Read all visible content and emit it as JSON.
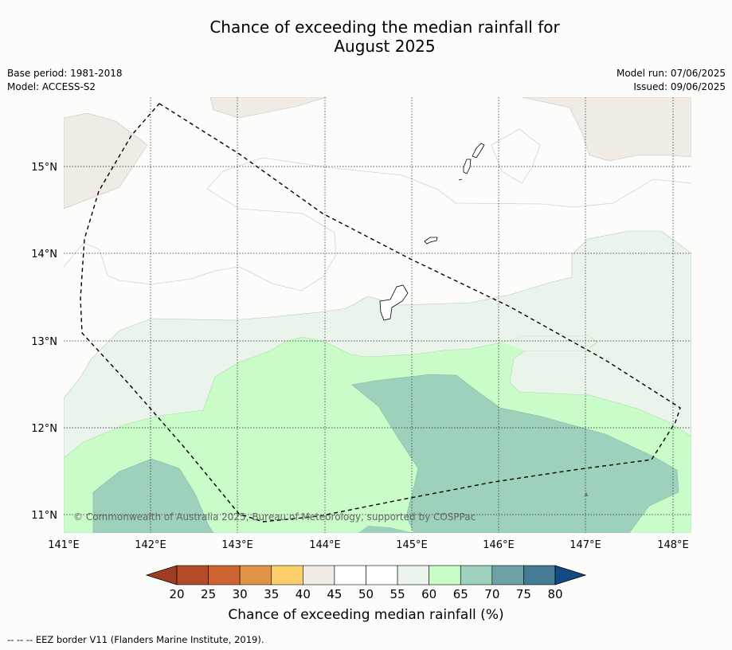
{
  "title_line1": "Chance of exceeding the median rainfall for",
  "title_line2": "August 2025",
  "base_period": "Base period: 1981-2018",
  "model": "Model: ACCESS-S2",
  "model_run": "Model run: 07/06/2025",
  "issued": "Issued: 09/06/2025",
  "copyright": "© Commonwealth of Australia 2025, Bureau of Meteorology, supported by COSPPac",
  "lon_labels": [
    "141°E",
    "142°E",
    "143°E",
    "144°E",
    "145°E",
    "146°E",
    "147°E",
    "148°E"
  ],
  "lat_labels": [
    "15°N",
    "14°N",
    "13°N",
    "12°N",
    "11°N"
  ],
  "colorbar": {
    "title": "Chance of exceeding median rainfall (%)",
    "ticks": [
      "20",
      "25",
      "30",
      "35",
      "40",
      "45",
      "50",
      "55",
      "60",
      "65",
      "70",
      "75",
      "80"
    ],
    "colors": [
      "#9e3d22",
      "#b34a28",
      "#cd6432",
      "#e09446",
      "#fccf6b",
      "#f1ebe6",
      "#ffffff",
      "#ffffff",
      "#eaf4ea",
      "#c9fcc9",
      "#9dd1bb",
      "#6da3a6",
      "#447c96",
      "#134a85"
    ]
  },
  "legend_note": "--  --  -- EEZ border V11 (Flanders Marine Institute, 2019)."
}
